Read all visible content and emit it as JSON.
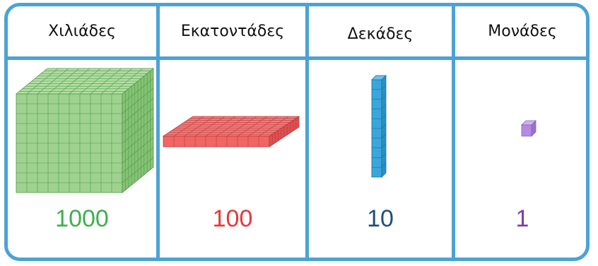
{
  "columns": [
    {
      "header": "Χιλιάδες",
      "value": "1000",
      "color": "#3fae4e",
      "block": "thousand-cube"
    },
    {
      "header": "Εκατοντάδες",
      "value": "100",
      "color": "#e6373a",
      "block": "hundred-flat"
    },
    {
      "header": "Δεκάδες",
      "value": "10",
      "color": "#1f4f78",
      "block": "ten-rod"
    },
    {
      "header": "Μονάδες",
      "value": "1",
      "color": "#7b3fa8",
      "block": "unit-cube"
    }
  ],
  "colors": {
    "border": "#4aa3d6",
    "thousand_fill": "#9ed28e",
    "hundred_fill": "#f26565",
    "ten_fill": "#3aa6dc",
    "unit_fill": "#b58be0"
  }
}
